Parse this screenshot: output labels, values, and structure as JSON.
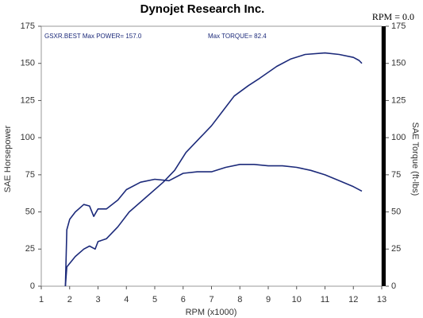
{
  "chart_data": {
    "type": "line",
    "title": "Dynojet Research Inc.",
    "status": "RPM = 0.0",
    "annotations": [
      "GSXR.BEST  Max POWER= 157.0",
      "Max TORQUE= 82.4"
    ],
    "x_label": "RPM (x1000)",
    "y_label": "SAE Horsepower",
    "y2_label": "SAE Torque (ft-lbs)",
    "xlim": [
      1,
      13
    ],
    "xticks": [
      1,
      2,
      3,
      4,
      5,
      6,
      7,
      8,
      9,
      10,
      11,
      12,
      13
    ],
    "ylim": [
      0,
      175
    ],
    "yticks": [
      0,
      25,
      50,
      75,
      100,
      125,
      150,
      175
    ],
    "y2lim": [
      0,
      175
    ],
    "y2ticks": [
      0,
      25,
      50,
      75,
      100,
      125,
      150,
      175
    ],
    "series": [
      {
        "name": "SAE Horsepower",
        "color": "#1c2a7a",
        "x": [
          1.85,
          1.9,
          2.2,
          2.5,
          2.7,
          2.9,
          3.0,
          3.3,
          3.7,
          4.1,
          4.7,
          5.3,
          5.7,
          6.1,
          6.6,
          7.0,
          7.4,
          7.8,
          8.3,
          8.7,
          9.3,
          9.8,
          10.3,
          11.0,
          11.5,
          12.0,
          12.2,
          12.3
        ],
        "values": [
          0,
          13,
          20,
          25,
          27,
          25,
          30,
          32,
          40,
          50,
          60,
          70,
          78,
          90,
          100,
          108,
          118,
          128,
          135,
          140,
          148,
          153,
          156,
          157,
          156,
          154,
          152,
          150
        ]
      },
      {
        "name": "SAE Torque",
        "color": "#1c2a7a",
        "axis": "y2",
        "x": [
          1.85,
          1.9,
          2.0,
          2.2,
          2.5,
          2.7,
          2.85,
          3.0,
          3.3,
          3.7,
          4.0,
          4.5,
          5.0,
          5.5,
          6.0,
          6.5,
          7.0,
          7.5,
          8.0,
          8.5,
          9.0,
          9.5,
          10.0,
          10.5,
          11.0,
          11.5,
          12.0,
          12.3
        ],
        "values": [
          0,
          38,
          45,
          50,
          55,
          54,
          47,
          52,
          52,
          58,
          65,
          70,
          72,
          71,
          76,
          77,
          77,
          80,
          82,
          82,
          81,
          81,
          80,
          78,
          75,
          71,
          67,
          64
        ]
      }
    ]
  }
}
